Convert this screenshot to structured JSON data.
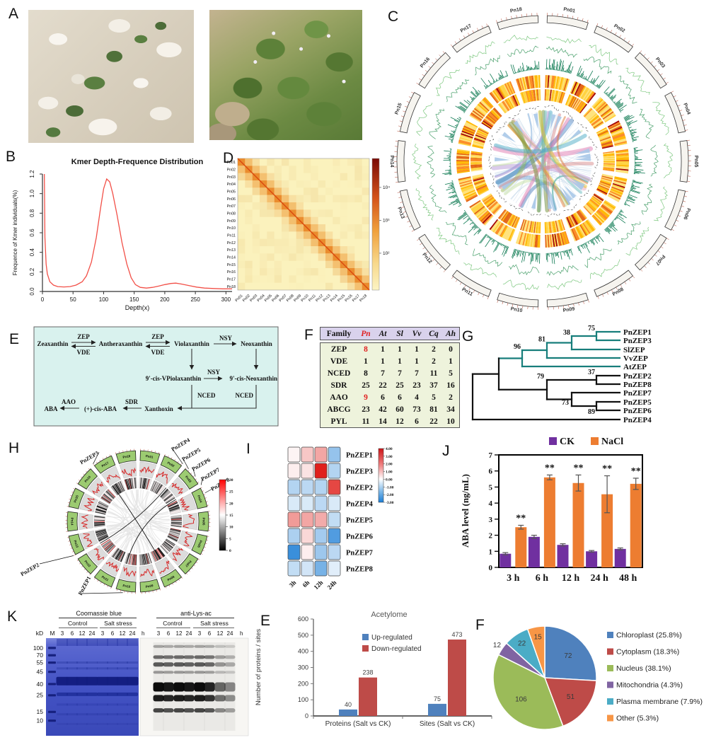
{
  "letters": {
    "a": "A",
    "b": "B",
    "c": "C",
    "d": "D",
    "e": "E",
    "f": "F",
    "g": "G",
    "h": "H",
    "i": "I",
    "j": "J",
    "k": "K",
    "e2": "E",
    "f2": "F"
  },
  "kmer": {
    "title": "Kmer Depth-Frequence Distribution",
    "xlabel": "Depth(x)",
    "ylabel": "Frequence of Kmer individuals(%)",
    "xticks": [
      0,
      50,
      100,
      150,
      200,
      250,
      300
    ],
    "yticks": [
      0.0,
      0.2,
      0.4,
      0.6,
      0.8,
      1.0,
      1.2
    ],
    "curve_color": "#f25048",
    "points": [
      [
        1,
        1.25
      ],
      [
        3,
        1.25
      ],
      [
        4,
        0.55
      ],
      [
        6,
        0.28
      ],
      [
        8,
        0.18
      ],
      [
        12,
        0.1
      ],
      [
        18,
        0.065
      ],
      [
        25,
        0.05
      ],
      [
        35,
        0.046
      ],
      [
        45,
        0.05
      ],
      [
        55,
        0.065
      ],
      [
        65,
        0.1
      ],
      [
        72,
        0.16
      ],
      [
        80,
        0.3
      ],
      [
        88,
        0.55
      ],
      [
        95,
        0.85
      ],
      [
        100,
        1.05
      ],
      [
        105,
        1.15
      ],
      [
        110,
        1.12
      ],
      [
        115,
        1.0
      ],
      [
        122,
        0.78
      ],
      [
        130,
        0.5
      ],
      [
        138,
        0.28
      ],
      [
        145,
        0.14
      ],
      [
        152,
        0.07
      ],
      [
        160,
        0.042
      ],
      [
        170,
        0.035
      ],
      [
        180,
        0.042
      ],
      [
        190,
        0.055
      ],
      [
        200,
        0.07
      ],
      [
        210,
        0.082
      ],
      [
        218,
        0.085
      ],
      [
        228,
        0.075
      ],
      [
        240,
        0.06
      ],
      [
        252,
        0.045
      ],
      [
        265,
        0.035
      ],
      [
        280,
        0.03
      ],
      [
        295,
        0.027
      ],
      [
        310,
        0.027
      ]
    ]
  },
  "hic": {
    "chromosomes": [
      "Pn01",
      "Pn02",
      "Pn03",
      "Pn04",
      "Pn05",
      "Pn06",
      "Pn07",
      "Pn08",
      "Pn09",
      "Pn10",
      "Pn11",
      "Pn12",
      "Pn13",
      "Pn14",
      "Pn15",
      "Pn16",
      "Pn17",
      "Pn18"
    ],
    "colorbar_ticks": [
      "10⁴",
      "10³",
      "10²"
    ]
  },
  "circos_c": {
    "chromosomes": [
      "Pn01",
      "Pn02",
      "Pn03",
      "Pn04",
      "Pn05",
      "Pn06",
      "Pn07",
      "Pn08",
      "Pn09",
      "Pn10",
      "Pn11",
      "Pn12",
      "Pn13",
      "Pn14",
      "Pn15",
      "Pn16",
      "Pn17",
      "Pn18"
    ]
  },
  "pathway": {
    "background": "#d9f2ee",
    "nodes": [
      "Zeaxanthin",
      "Antheraxanthin",
      "Violaxanthin",
      "Neoxanthin",
      "9'-cis-VPiolaxanthin",
      "9'-cis-Neoxanthin",
      "Xanthoxin",
      "(+)-cis-ABA",
      "ABA"
    ],
    "enzymes": [
      "ZEP",
      "VDE",
      "NSY",
      "NCED",
      "SDR",
      "AAO"
    ]
  },
  "family_table": {
    "headers": [
      "Family",
      "Pn",
      "At",
      "Sl",
      "Vv",
      "Cq",
      "Ah"
    ],
    "rows": [
      [
        "ZEP",
        8,
        1,
        1,
        1,
        2,
        0
      ],
      [
        "VDE",
        1,
        1,
        1,
        1,
        2,
        1
      ],
      [
        "NCED",
        8,
        7,
        7,
        7,
        11,
        5
      ],
      [
        "SDR",
        25,
        22,
        25,
        23,
        37,
        16
      ],
      [
        "AAO",
        9,
        6,
        6,
        4,
        5,
        2
      ],
      [
        "ABCG",
        23,
        42,
        60,
        73,
        81,
        34
      ],
      [
        "PYL",
        11,
        14,
        12,
        6,
        22,
        10
      ]
    ],
    "red_families": [
      "ZEP",
      "AAO"
    ],
    "accent_color": "#e02020"
  },
  "tree": {
    "leaves": [
      "PnZEP1",
      "PnZEP3",
      "SlZEP",
      "VvZEP",
      "AtZEP",
      "PnZEP2",
      "PnZEP8",
      "PnZEP7",
      "PnZEP5",
      "PnZEP6",
      "PnZEP4"
    ],
    "bootstraps": {
      "b75": "75",
      "b38": "38",
      "b81": "81",
      "b96": "96",
      "b37": "37",
      "b79": "79",
      "b73": "73",
      "b89": "89"
    },
    "clade_color": "#177e7b"
  },
  "circos_h": {
    "chromosomes": [
      "Pn01",
      "Pn02",
      "Pn03",
      "Pn04",
      "Pn05",
      "Pn06",
      "Pn07",
      "Pn08",
      "Pn09",
      "Pn10",
      "Pn11",
      "Pn12",
      "Pn13",
      "Pn14",
      "Pn15",
      "Pn16",
      "Pn17",
      "Pn18"
    ],
    "genes": [
      "PnZEP4",
      "PnZEP5",
      "PnZEP6",
      "PnZEP7",
      "PnZEP8",
      "PnZEP3",
      "PnZEP2",
      "PnZEP1"
    ],
    "colorbar_ticks": [
      30,
      25,
      20,
      15,
      10,
      5,
      0
    ]
  },
  "zep_heatmap": {
    "rows": [
      "PnZEP1",
      "PnZEP3",
      "PnZEP2",
      "PnZEP4",
      "PnZEP5",
      "PnZEP6",
      "PnZEP7",
      "PnZEP8"
    ],
    "cols": [
      "3h",
      "6h",
      "12h",
      "24h"
    ],
    "values": [
      [
        0.2,
        1.0,
        1.6,
        -1.4
      ],
      [
        0.3,
        0.5,
        4.0,
        -1.0
      ],
      [
        -1.0,
        -0.9,
        -1.0,
        3.3
      ],
      [
        -0.5,
        -0.5,
        -0.9,
        -0.5
      ],
      [
        1.8,
        1.6,
        1.5,
        -0.8
      ],
      [
        -1.1,
        0.7,
        -1.2,
        -2.3
      ],
      [
        -2.6,
        0.3,
        -1.3,
        -0.9
      ],
      [
        -0.8,
        -0.6,
        -1.8,
        -0.4
      ]
    ],
    "colorbar_ticks": [
      "4.00",
      "3.00",
      "2.00",
      "1.00",
      "0.00",
      "-1.00",
      "-2.00",
      "-3.00"
    ]
  },
  "aba_assay": {
    "legend": [
      "CK",
      "NaCl"
    ],
    "colors": [
      "#7030a0",
      "#ed7d31"
    ],
    "categories": [
      "3 h",
      "6 h",
      "12 h",
      "24 h",
      "48 h"
    ],
    "ck": [
      0.85,
      1.9,
      1.4,
      1.0,
      1.15
    ],
    "ck_err": [
      0.07,
      0.1,
      0.07,
      0.05,
      0.06
    ],
    "nacl": [
      2.5,
      5.6,
      5.25,
      4.55,
      5.2
    ],
    "nacl_err": [
      0.12,
      0.15,
      0.5,
      1.15,
      0.35
    ],
    "significance": [
      "**",
      "**",
      "**",
      "**",
      "**"
    ],
    "ylabel": "ABA level (ng/mL)",
    "yticks": [
      0,
      1,
      2,
      3,
      4,
      5,
      6,
      7
    ]
  },
  "gel": {
    "left_stain": "Coomassie blue",
    "right_stain": "anti-Lys-ac",
    "groups": [
      "Control",
      "Salt stress"
    ],
    "timepoints": [
      "3",
      "6",
      "12",
      "24"
    ],
    "time_unit": "h",
    "kd_label": "kD",
    "ladder_label": "M",
    "markers": [
      100,
      70,
      55,
      45,
      40,
      25,
      15,
      10
    ]
  },
  "acetylome": {
    "title": "Acetylome",
    "ylabel": "Number of proteins / sites",
    "categories": [
      "Proteins (Salt vs CK)",
      "Sites (Salt vs CK)"
    ],
    "series": [
      {
        "name": "Up-regulated",
        "color": "#4f81bd",
        "values": [
          40,
          75
        ]
      },
      {
        "name": "Down-regulated",
        "color": "#be4b48",
        "values": [
          238,
          473
        ]
      }
    ],
    "yticks": [
      0,
      100,
      200,
      300,
      400,
      500,
      600
    ]
  },
  "pie": {
    "slices": [
      {
        "label": "Chloroplast (25.8%)",
        "value": 72,
        "color": "#4f81bd"
      },
      {
        "label": "Cytoplasm (18.3%)",
        "value": 51,
        "color": "#be4b48"
      },
      {
        "label": "Nucleus (38.1%)",
        "value": 106,
        "color": "#9bbb59"
      },
      {
        "label": "Mitochondria (4.3%)",
        "value": 12,
        "color": "#8064a2"
      },
      {
        "label": "Plasma membrane (7.9%)",
        "value": 22,
        "color": "#4bacc6"
      },
      {
        "label": "Other (5.3%)",
        "value": 15,
        "color": "#f79646"
      }
    ]
  }
}
